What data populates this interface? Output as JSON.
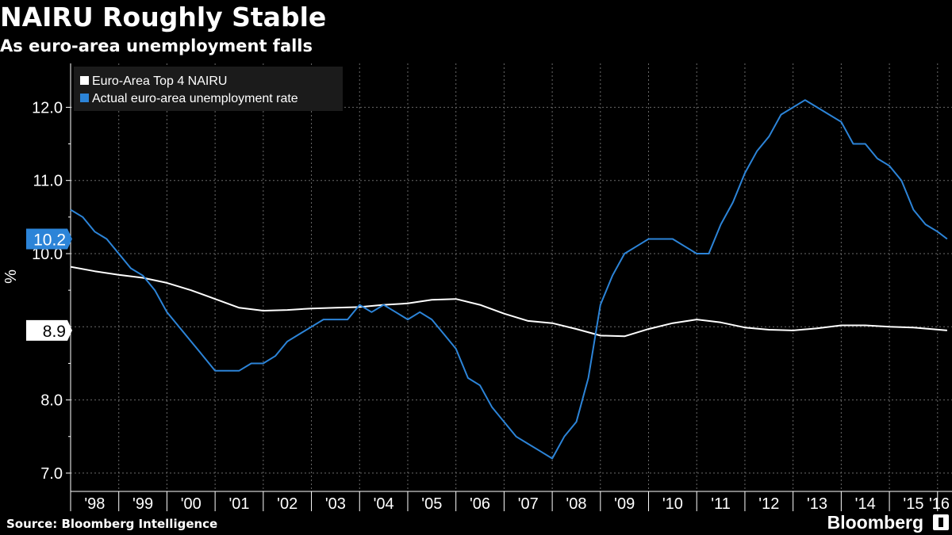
{
  "header": {
    "title": "NAIRU Roughly Stable",
    "subtitle": "As euro-area unemployment falls"
  },
  "footer": {
    "source": "Source: Bloomberg Intelligence",
    "brand": "Bloomberg"
  },
  "colors": {
    "background": "#000000",
    "nairu": "#ffffff",
    "unemployment": "#2c84d8",
    "grid": "#6a6a6a"
  },
  "chart_data": {
    "type": "line",
    "title": "NAIRU Roughly Stable",
    "subtitle": "As euro-area unemployment falls",
    "xlabel": "",
    "ylabel": "%",
    "xlim": [
      1998.0,
      2016.3
    ],
    "ylim": [
      6.75,
      12.6
    ],
    "yticks": [
      7.0,
      8.0,
      9.0,
      10.0,
      11.0,
      12.0
    ],
    "ytick_labels": [
      "7.0",
      "8.0",
      "",
      "10.0",
      "11.0",
      "12.0"
    ],
    "xtick_labels": [
      "'98",
      "'99",
      "'00",
      "'01",
      "'02",
      "'03",
      "'04",
      "'05",
      "'06",
      "'07",
      "'08",
      "'09",
      "'10",
      "'11",
      "'12",
      "'13",
      "'14",
      "'15",
      "'16"
    ],
    "grid": true,
    "legend_position": "top-left",
    "series": [
      {
        "name": "Euro-Area Top 4 NAIRU",
        "color": "#ffffff",
        "last_value_label": "8.9",
        "x": [
          1998.0,
          1998.5,
          1999.0,
          1999.5,
          2000.0,
          2000.5,
          2001.0,
          2001.5,
          2002.0,
          2002.5,
          2003.0,
          2003.5,
          2004.0,
          2004.5,
          2005.0,
          2005.5,
          2006.0,
          2006.5,
          2007.0,
          2007.5,
          2008.0,
          2008.5,
          2009.0,
          2009.5,
          2010.0,
          2010.5,
          2011.0,
          2011.5,
          2012.0,
          2012.5,
          2013.0,
          2013.5,
          2014.0,
          2014.5,
          2015.0,
          2015.5,
          2016.2
        ],
        "y": [
          9.82,
          9.76,
          9.71,
          9.67,
          9.6,
          9.5,
          9.38,
          9.26,
          9.22,
          9.23,
          9.25,
          9.26,
          9.27,
          9.3,
          9.32,
          9.37,
          9.38,
          9.3,
          9.18,
          9.08,
          9.05,
          8.97,
          8.88,
          8.87,
          8.97,
          9.05,
          9.1,
          9.06,
          8.99,
          8.96,
          8.95,
          8.98,
          9.02,
          9.02,
          9.0,
          8.99,
          8.95
        ]
      },
      {
        "name": "Actual euro-area unemployment rate",
        "color": "#2c84d8",
        "last_value_label": "10.2",
        "x": [
          1998.0,
          1998.25,
          1998.5,
          1998.75,
          1999.0,
          1999.25,
          1999.5,
          1999.75,
          2000.0,
          2000.25,
          2000.5,
          2000.75,
          2001.0,
          2001.25,
          2001.5,
          2001.75,
          2002.0,
          2002.25,
          2002.5,
          2002.75,
          2003.0,
          2003.25,
          2003.5,
          2003.75,
          2004.0,
          2004.25,
          2004.5,
          2004.75,
          2005.0,
          2005.25,
          2005.5,
          2005.75,
          2006.0,
          2006.25,
          2006.5,
          2006.75,
          2007.0,
          2007.25,
          2007.5,
          2007.75,
          2008.0,
          2008.25,
          2008.5,
          2008.75,
          2009.0,
          2009.25,
          2009.5,
          2009.75,
          2010.0,
          2010.25,
          2010.5,
          2010.75,
          2011.0,
          2011.25,
          2011.5,
          2011.75,
          2012.0,
          2012.25,
          2012.5,
          2012.75,
          2013.0,
          2013.25,
          2013.5,
          2013.75,
          2014.0,
          2014.25,
          2014.5,
          2014.75,
          2015.0,
          2015.25,
          2015.5,
          2015.75,
          2016.0,
          2016.2
        ],
        "y": [
          10.6,
          10.5,
          10.3,
          10.2,
          10.0,
          9.8,
          9.7,
          9.5,
          9.2,
          9.0,
          8.8,
          8.6,
          8.4,
          8.4,
          8.4,
          8.5,
          8.5,
          8.6,
          8.8,
          8.9,
          9.0,
          9.1,
          9.1,
          9.1,
          9.3,
          9.2,
          9.3,
          9.2,
          9.1,
          9.2,
          9.1,
          8.9,
          8.7,
          8.3,
          8.2,
          7.9,
          7.7,
          7.5,
          7.4,
          7.3,
          7.2,
          7.5,
          7.7,
          8.3,
          9.3,
          9.7,
          10.0,
          10.1,
          10.2,
          10.2,
          10.2,
          10.1,
          10.0,
          10.0,
          10.4,
          10.7,
          11.1,
          11.4,
          11.6,
          11.9,
          12.0,
          12.1,
          12.0,
          11.9,
          11.8,
          11.5,
          11.5,
          11.3,
          11.2,
          11.0,
          10.6,
          10.4,
          10.3,
          10.2
        ]
      }
    ]
  }
}
